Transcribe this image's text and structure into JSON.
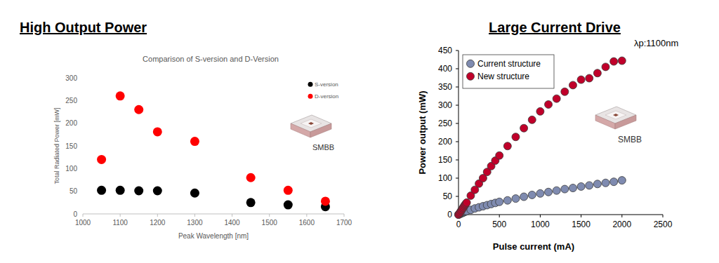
{
  "chart_data": [
    {
      "type": "scatter",
      "heading": "High Output Power",
      "title": "Comparison of S-version and D-Version",
      "x_label": "Peak Wavelength [nm]",
      "y_label": "Total Radiated Power [mW]",
      "x": [
        1050,
        1100,
        1150,
        1200,
        1300,
        1450,
        1550,
        1650
      ],
      "series": [
        {
          "name": "S-version",
          "color": "#000000",
          "marker": "circle",
          "values": [
            52,
            52,
            51,
            51,
            46,
            25,
            20,
            16
          ]
        },
        {
          "name": "D-version",
          "color": "#ff0000",
          "marker": "circle",
          "values": [
            120,
            260,
            230,
            181,
            160,
            80,
            52,
            28
          ]
        }
      ],
      "xlim": [
        1000,
        1700
      ],
      "xticks": [
        1000,
        1100,
        1200,
        1300,
        1400,
        1500,
        1600,
        1700
      ],
      "ylim": [
        0,
        300
      ],
      "yticks": [
        0,
        50,
        100,
        150,
        200,
        250,
        300
      ],
      "grid": false,
      "legend": "upper right",
      "annotations": [
        "SMBB"
      ]
    },
    {
      "type": "scatter",
      "heading": "Large Current Drive",
      "x_label": "Pulse current (mA)",
      "y_label": "Power output (mW)",
      "x": [
        0,
        10,
        20,
        30,
        40,
        50,
        60,
        70,
        80,
        90,
        100,
        150,
        200,
        250,
        300,
        350,
        400,
        450,
        500,
        600,
        700,
        800,
        900,
        1000,
        1100,
        1200,
        1300,
        1400,
        1500,
        1600,
        1700,
        1800,
        1900,
        2000
      ],
      "series": [
        {
          "name": "Current structure",
          "color": "#7f8bb0",
          "marker": "circle",
          "values": [
            0,
            1,
            2,
            3,
            4,
            5,
            6,
            7,
            8,
            9,
            10,
            13,
            17,
            20,
            23,
            26,
            29,
            32,
            35,
            39,
            44,
            49,
            54,
            58,
            62,
            66,
            70,
            73,
            77,
            80,
            84,
            87,
            90,
            94
          ]
        },
        {
          "name": "New structure",
          "color": "#c0002a",
          "marker": "circle",
          "values": [
            0,
            3,
            6,
            10,
            13,
            17,
            20,
            24,
            27,
            30,
            33,
            52,
            68,
            85,
            100,
            117,
            133,
            148,
            162,
            188,
            213,
            237,
            260,
            283,
            302,
            318,
            337,
            355,
            370,
            374,
            388,
            405,
            420,
            422
          ]
        }
      ],
      "xlim": [
        0,
        2500
      ],
      "xticks": [
        0,
        500,
        1000,
        1500,
        2000,
        2500
      ],
      "ylim": [
        0,
        450
      ],
      "yticks": [
        0,
        50,
        100,
        150,
        200,
        250,
        300,
        350,
        400,
        450
      ],
      "grid": false,
      "legend": "upper left",
      "annotations": [
        "λp:1100nm",
        "SMBB"
      ]
    }
  ]
}
